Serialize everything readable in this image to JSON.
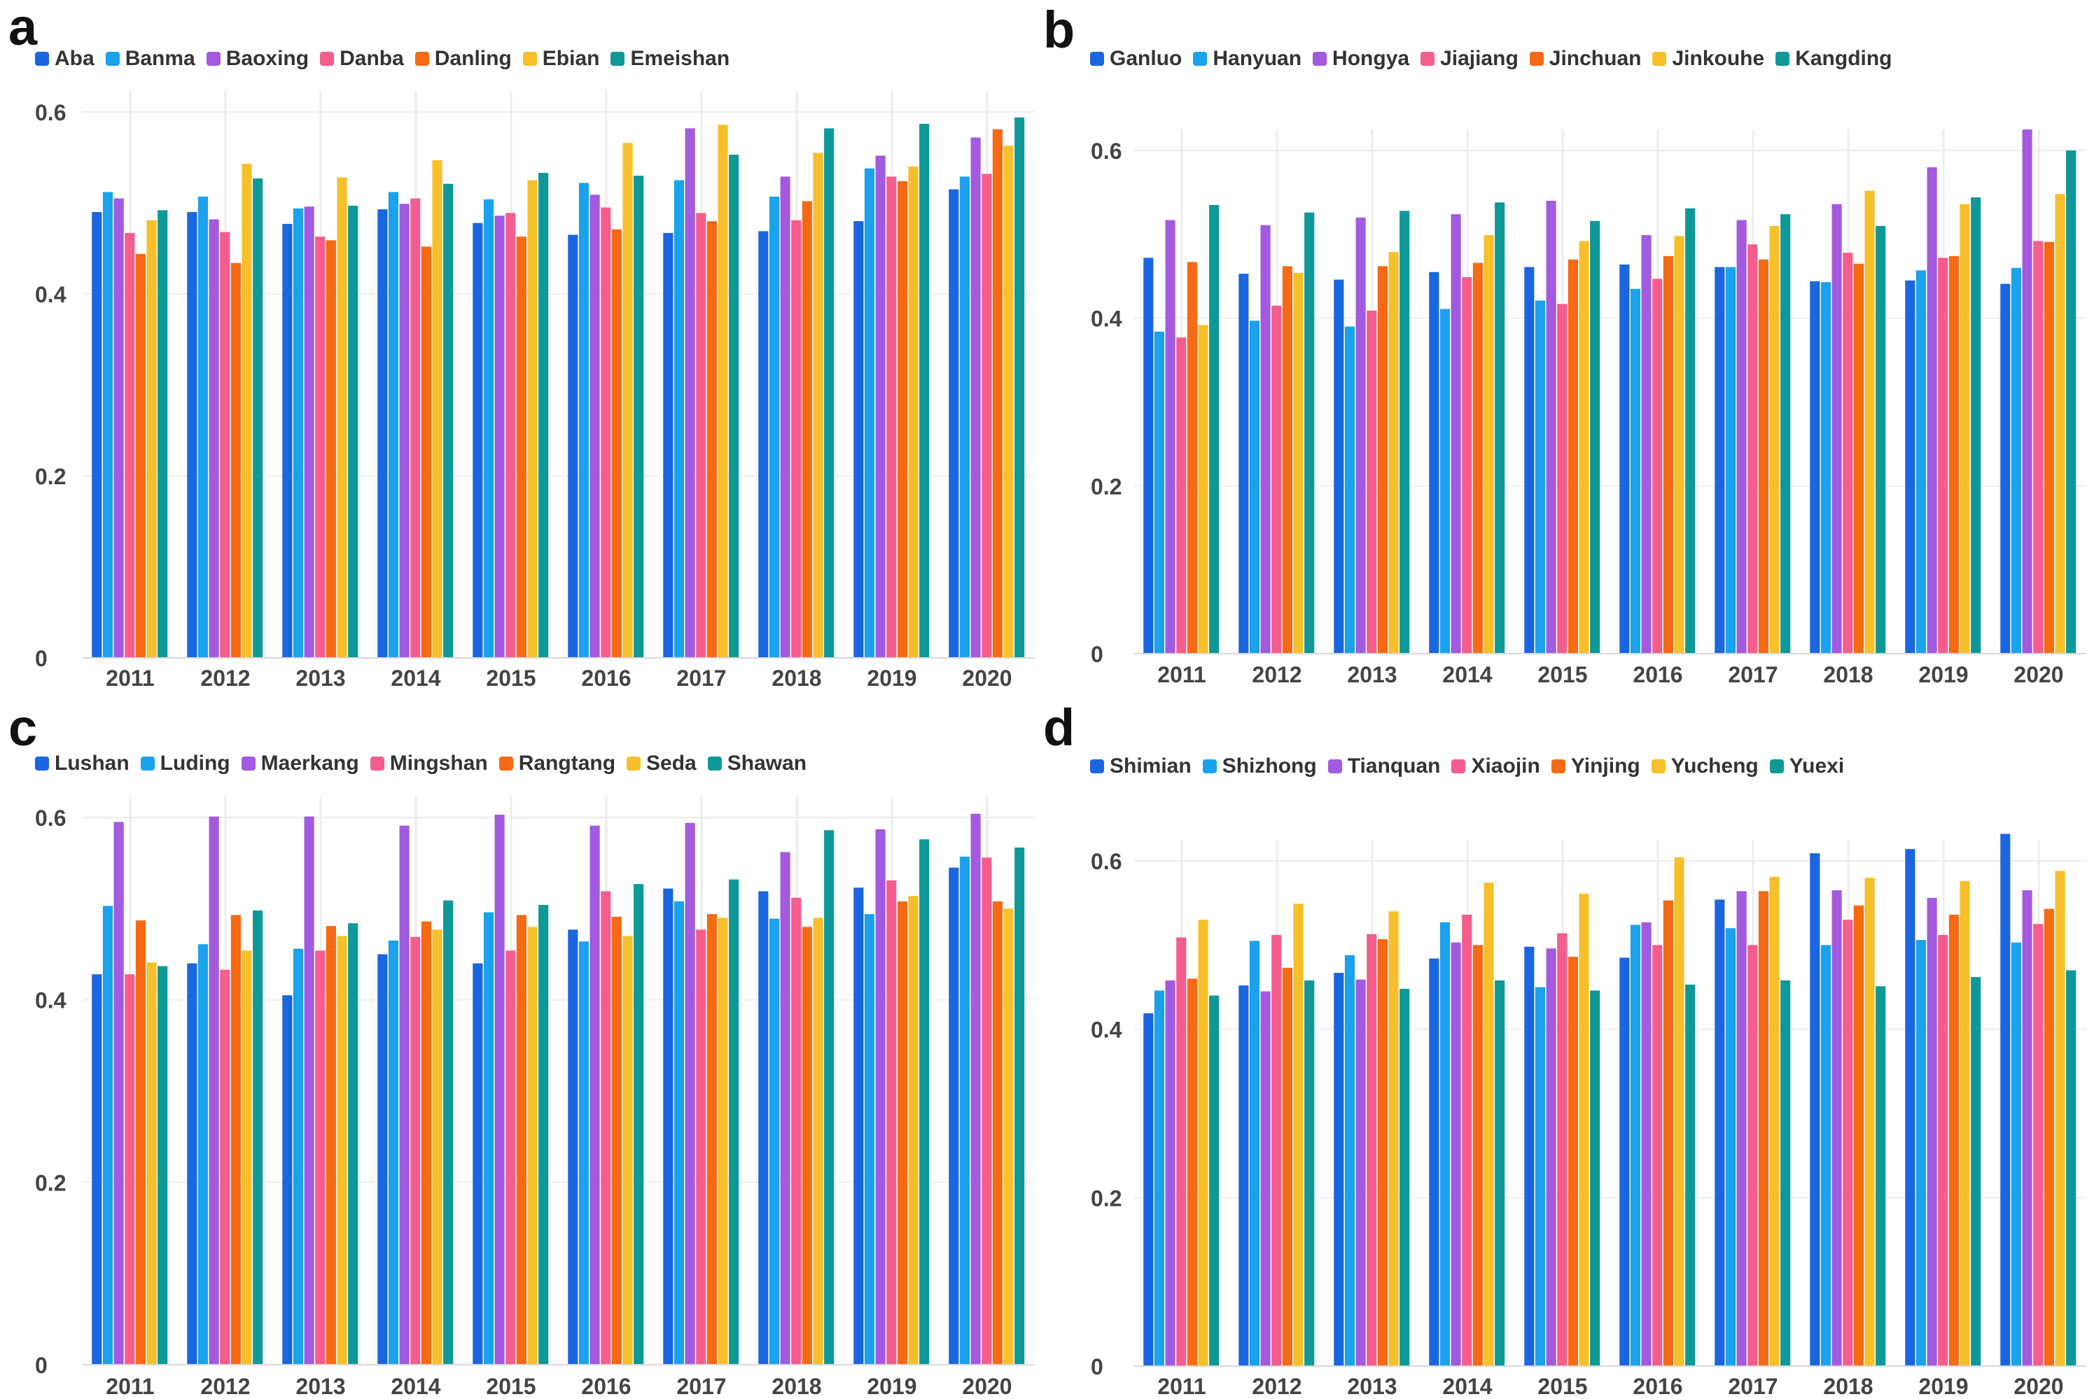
{
  "colors": [
    "#1a66e0",
    "#1aa2ec",
    "#a25ae0",
    "#f45d8c",
    "#f56a12",
    "#f7c02a",
    "#0e9898"
  ],
  "chart_data": [
    {
      "panel": "a",
      "type": "bar",
      "categories": [
        "2011",
        "2012",
        "2013",
        "2014",
        "2015",
        "2016",
        "2017",
        "2018",
        "2019",
        "2020"
      ],
      "ylim": [
        0,
        0.6
      ],
      "yticks": [
        0,
        0.2,
        0.4,
        0.6
      ],
      "ytick_labels": [
        "0",
        "0.2",
        "0.4",
        "0.6"
      ],
      "series": [
        {
          "name": "Aba",
          "values": [
            0.49,
            0.49,
            0.477,
            0.493,
            0.478,
            0.465,
            0.467,
            0.469,
            0.48,
            0.515
          ]
        },
        {
          "name": "Banma",
          "values": [
            0.512,
            0.507,
            0.494,
            0.512,
            0.504,
            0.522,
            0.525,
            0.507,
            0.538,
            0.529
          ]
        },
        {
          "name": "Baoxing",
          "values": [
            0.505,
            0.482,
            0.496,
            0.499,
            0.486,
            0.509,
            0.582,
            0.529,
            0.552,
            0.572
          ]
        },
        {
          "name": "Danba",
          "values": [
            0.467,
            0.468,
            0.463,
            0.505,
            0.489,
            0.495,
            0.489,
            0.481,
            0.529,
            0.532
          ]
        },
        {
          "name": "Danling",
          "values": [
            0.444,
            0.434,
            0.459,
            0.452,
            0.463,
            0.471,
            0.48,
            0.502,
            0.524,
            0.581
          ]
        },
        {
          "name": "Ebian",
          "values": [
            0.481,
            0.543,
            0.528,
            0.547,
            0.525,
            0.566,
            0.586,
            0.555,
            0.54,
            0.563
          ]
        },
        {
          "name": "Emeishan",
          "values": [
            0.492,
            0.527,
            0.497,
            0.521,
            0.533,
            0.53,
            0.553,
            0.582,
            0.587,
            0.594
          ]
        }
      ]
    },
    {
      "panel": "b",
      "type": "bar",
      "categories": [
        "2011",
        "2012",
        "2013",
        "2014",
        "2015",
        "2016",
        "2017",
        "2018",
        "2019",
        "2020"
      ],
      "ylim": [
        0,
        0.6
      ],
      "yticks": [
        0,
        0.2,
        0.4,
        0.6
      ],
      "ytick_labels": [
        "0",
        "0.2",
        "0.4",
        "0.6"
      ],
      "series": [
        {
          "name": "Ganluo",
          "values": [
            0.472,
            0.453,
            0.446,
            0.455,
            0.461,
            0.464,
            0.461,
            0.444,
            0.445,
            0.441
          ]
        },
        {
          "name": "Hanyuan",
          "values": [
            0.384,
            0.397,
            0.39,
            0.411,
            0.421,
            0.435,
            0.461,
            0.443,
            0.457,
            0.46
          ]
        },
        {
          "name": "Hongya",
          "values": [
            0.517,
            0.511,
            0.52,
            0.524,
            0.54,
            0.499,
            0.517,
            0.536,
            0.58,
            0.625
          ]
        },
        {
          "name": "Jiajiang",
          "values": [
            0.377,
            0.415,
            0.409,
            0.449,
            0.417,
            0.447,
            0.488,
            0.478,
            0.472,
            0.492
          ]
        },
        {
          "name": "Jinchuan",
          "values": [
            0.467,
            0.462,
            0.462,
            0.466,
            0.47,
            0.474,
            0.47,
            0.465,
            0.474,
            0.491
          ]
        },
        {
          "name": "Jinkouhe",
          "values": [
            0.392,
            0.454,
            0.479,
            0.499,
            0.492,
            0.498,
            0.51,
            0.552,
            0.536,
            0.548
          ]
        },
        {
          "name": "Kangding",
          "values": [
            0.535,
            0.526,
            0.528,
            0.538,
            0.516,
            0.531,
            0.524,
            0.51,
            0.544,
            0.6
          ]
        }
      ]
    },
    {
      "panel": "c",
      "type": "bar",
      "categories": [
        "2011",
        "2012",
        "2013",
        "2014",
        "2015",
        "2016",
        "2017",
        "2018",
        "2019",
        "2020"
      ],
      "ylim": [
        0,
        0.6
      ],
      "yticks": [
        0,
        0.2,
        0.4,
        0.6
      ],
      "ytick_labels": [
        "0",
        "0.2",
        "0.4",
        "0.6"
      ],
      "series": [
        {
          "name": "Lushan",
          "values": [
            0.428,
            0.44,
            0.405,
            0.45,
            0.44,
            0.477,
            0.522,
            0.519,
            0.523,
            0.545
          ]
        },
        {
          "name": "Luding",
          "values": [
            0.503,
            0.461,
            0.456,
            0.465,
            0.496,
            0.464,
            0.508,
            0.489,
            0.494,
            0.557
          ]
        },
        {
          "name": "Maerkang",
          "values": [
            0.595,
            0.601,
            0.601,
            0.591,
            0.603,
            0.591,
            0.594,
            0.562,
            0.587,
            0.604
          ]
        },
        {
          "name": "Mingshan",
          "values": [
            0.428,
            0.433,
            0.454,
            0.469,
            0.454,
            0.519,
            0.477,
            0.512,
            0.531,
            0.556
          ]
        },
        {
          "name": "Rangtang",
          "values": [
            0.487,
            0.493,
            0.481,
            0.486,
            0.493,
            0.491,
            0.494,
            0.48,
            0.508,
            0.508
          ]
        },
        {
          "name": "Seda",
          "values": [
            0.441,
            0.454,
            0.47,
            0.477,
            0.48,
            0.47,
            0.49,
            0.49,
            0.514,
            0.5
          ]
        },
        {
          "name": "Shawan",
          "values": [
            0.437,
            0.498,
            0.484,
            0.509,
            0.504,
            0.527,
            0.532,
            0.586,
            0.576,
            0.567
          ]
        }
      ]
    },
    {
      "panel": "d",
      "type": "bar",
      "categories": [
        "2011",
        "2012",
        "2013",
        "2014",
        "2015",
        "2016",
        "2017",
        "2018",
        "2019",
        "2020"
      ],
      "ylim": [
        0,
        0.6
      ],
      "yticks": [
        0,
        0.2,
        0.4,
        0.6
      ],
      "ytick_labels": [
        "0",
        "0.2",
        "0.4",
        "0.6"
      ],
      "series": [
        {
          "name": "Shimian",
          "values": [
            0.419,
            0.452,
            0.467,
            0.484,
            0.498,
            0.485,
            0.554,
            0.609,
            0.614,
            0.632
          ]
        },
        {
          "name": "Shizhong",
          "values": [
            0.446,
            0.505,
            0.488,
            0.527,
            0.45,
            0.524,
            0.52,
            0.5,
            0.506,
            0.503
          ]
        },
        {
          "name": "Tianquan",
          "values": [
            0.458,
            0.445,
            0.459,
            0.503,
            0.496,
            0.527,
            0.564,
            0.565,
            0.556,
            0.565
          ]
        },
        {
          "name": "Xiaojin",
          "values": [
            0.509,
            0.512,
            0.513,
            0.536,
            0.514,
            0.5,
            0.5,
            0.53,
            0.512,
            0.525
          ]
        },
        {
          "name": "Yinjing",
          "values": [
            0.46,
            0.473,
            0.507,
            0.5,
            0.486,
            0.553,
            0.564,
            0.547,
            0.536,
            0.543
          ]
        },
        {
          "name": "Yucheng",
          "values": [
            0.53,
            0.549,
            0.54,
            0.574,
            0.561,
            0.604,
            0.581,
            0.58,
            0.576,
            0.588
          ]
        },
        {
          "name": "Yuexi",
          "values": [
            0.44,
            0.458,
            0.448,
            0.458,
            0.446,
            0.453,
            0.458,
            0.451,
            0.462,
            0.47
          ]
        }
      ]
    }
  ]
}
